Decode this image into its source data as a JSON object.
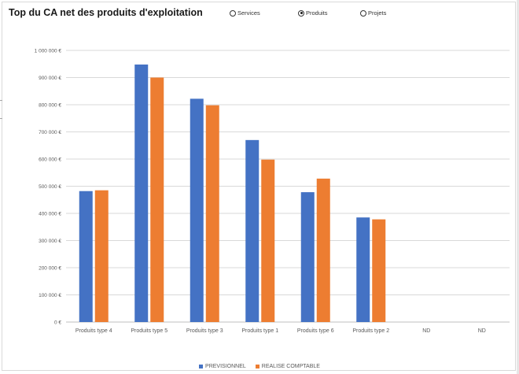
{
  "title": "Top du CA net des produits d'exploitation",
  "radio_options": [
    {
      "label": "Services",
      "checked": false
    },
    {
      "label": "Produits",
      "checked": true
    },
    {
      "label": "Projets",
      "checked": false
    }
  ],
  "chart_data": {
    "type": "bar",
    "categories": [
      "Produits type 4",
      "Produits type 5",
      "Produits type 3",
      "Produits type 1",
      "Produits type 6",
      "Produits type 2",
      "ND",
      "ND"
    ],
    "series": [
      {
        "name": "PREVISIONNEL",
        "color": "#4472c4",
        "values": [
          482000,
          948000,
          822000,
          670000,
          478000,
          385000,
          null,
          null
        ]
      },
      {
        "name": "REALISE COMPTABLE",
        "color": "#ed7d31",
        "values": [
          485000,
          900000,
          798000,
          598000,
          528000,
          378000,
          null,
          null
        ]
      }
    ],
    "ylim": [
      0,
      1000000
    ],
    "yticks": [
      0,
      100000,
      200000,
      300000,
      400000,
      500000,
      600000,
      700000,
      800000,
      900000,
      1000000
    ],
    "ytick_labels": [
      "0 €",
      "100 000 €",
      "200 000 €",
      "300 000 €",
      "400 000 €",
      "500 000 €",
      "600 000 €",
      "700 000 €",
      "800 000 €",
      "900 000 €",
      "1 000 000 €"
    ],
    "grid": true,
    "legend_position": "bottom"
  }
}
